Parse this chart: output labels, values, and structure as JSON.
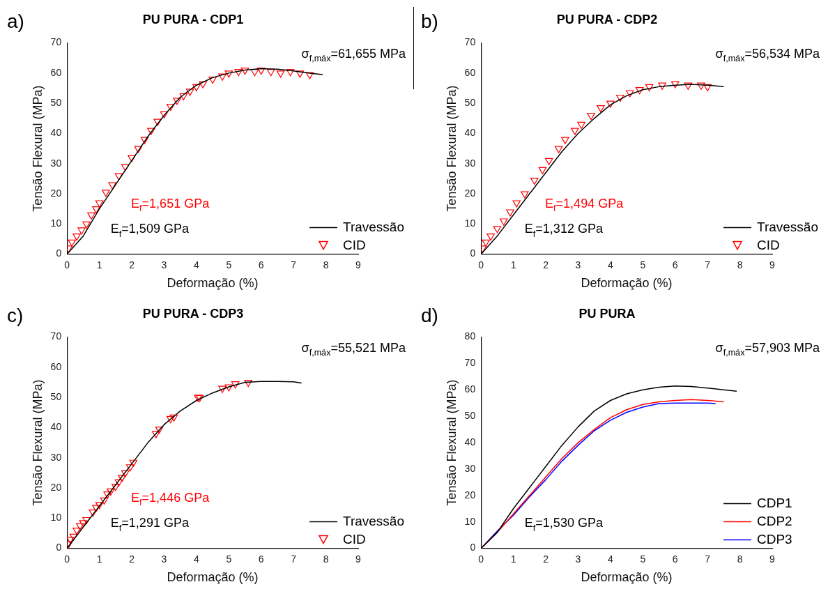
{
  "chart_data": [
    {
      "type": "line",
      "title": "PU PURA - CDP1",
      "xlabel": "Deformação (%)",
      "ylabel": "Tensão Flexural (MPa)",
      "xlim": [
        0,
        9
      ],
      "xticks": [
        0,
        1,
        2,
        3,
        4,
        5,
        6,
        7,
        8,
        9
      ],
      "ylim": [
        0,
        70
      ],
      "yticks": [
        0,
        10,
        20,
        30,
        40,
        50,
        60,
        70
      ],
      "legend": "bottom right",
      "annotations": [
        "a)",
        "σ$_{f,máx}$=61,655 MPa",
        "E$_{f}$=1,651 GPa",
        "E$_{f}$=1,509 GPa"
      ],
      "series": [
        {
          "name": "Travessão",
          "type": "line",
          "color": "#000000",
          "marker": "none",
          "x": [
            0,
            0.5,
            1,
            1.5,
            2,
            2.5,
            3,
            3.5,
            4,
            4.5,
            5,
            5.5,
            6,
            6.5,
            7,
            7.5,
            7.9
          ],
          "values": [
            0,
            6,
            15,
            23,
            31,
            39,
            46,
            52,
            56,
            58.5,
            60,
            61,
            61.5,
            61.3,
            60.7,
            60,
            59.5
          ]
        },
        {
          "name": "CID",
          "type": "scatter",
          "color": "#ff0000",
          "marker": "triangle",
          "x": [
            0.05,
            0.15,
            0.3,
            0.45,
            0.6,
            0.75,
            0.9,
            1.0,
            1.2,
            1.4,
            1.6,
            1.8,
            2.0,
            2.2,
            2.4,
            2.6,
            2.8,
            3.0,
            3.2,
            3.4,
            3.6,
            3.8,
            4.0,
            4.2,
            4.5,
            4.8,
            5.0,
            5.3,
            5.5,
            5.8,
            6.0,
            6.3,
            6.6,
            6.9,
            7.2,
            7.5
          ],
          "values": [
            2,
            4,
            6,
            8,
            10,
            13,
            15,
            17,
            20.5,
            23,
            26,
            29,
            32,
            35,
            38,
            41,
            44,
            46.5,
            49,
            51,
            52.5,
            54,
            55.5,
            56.5,
            58,
            59,
            60,
            60.5,
            61,
            60.5,
            61,
            60.5,
            60,
            60.5,
            60,
            59.5
          ]
        }
      ]
    },
    {
      "type": "line",
      "title": "PU PURA - CDP2",
      "xlabel": "Deformação (%)",
      "ylabel": "Tensão Flexural (MPa)",
      "xlim": [
        0,
        9
      ],
      "xticks": [
        0,
        1,
        2,
        3,
        4,
        5,
        6,
        7,
        8,
        9
      ],
      "ylim": [
        0,
        70
      ],
      "yticks": [
        0,
        10,
        20,
        30,
        40,
        50,
        60,
        70
      ],
      "legend": "bottom right",
      "annotations": [
        "b)",
        "σ$_{f,máx}$=56,534 MPa",
        "E$_{f}$=1,494 GPa",
        "E$_{f}$=1,312 GPa"
      ],
      "series": [
        {
          "name": "Travessão",
          "type": "line",
          "color": "#000000",
          "marker": "none",
          "x": [
            0,
            0.5,
            1,
            1.5,
            2,
            2.5,
            3,
            3.5,
            4,
            4.5,
            5,
            5.5,
            6,
            6.5,
            7,
            7.5
          ],
          "values": [
            0,
            6,
            13,
            20,
            27,
            34,
            40,
            45,
            49.5,
            52.5,
            54.5,
            55.5,
            56,
            56.3,
            56,
            55.5
          ]
        },
        {
          "name": "CID",
          "type": "scatter",
          "color": "#ff0000",
          "marker": "triangle",
          "x": [
            0.05,
            0.15,
            0.3,
            0.5,
            0.7,
            0.9,
            1.1,
            1.35,
            1.65,
            1.9,
            2.1,
            2.4,
            2.6,
            2.9,
            3.1,
            3.4,
            3.7,
            4.0,
            4.3,
            4.6,
            4.9,
            5.2,
            5.6,
            6.0,
            6.4,
            6.8,
            7.0
          ],
          "values": [
            2,
            4,
            6,
            8.5,
            11,
            14,
            17,
            20,
            24.5,
            28,
            31,
            35,
            38,
            41,
            43,
            46,
            48.5,
            50,
            52,
            53.5,
            54.5,
            55.5,
            56,
            56.5,
            56,
            56,
            55.5
          ]
        }
      ]
    },
    {
      "type": "line",
      "title": "PU PURA - CDP3",
      "xlabel": "Deformação (%)",
      "ylabel": "Tensão Flexural (MPa)",
      "xlim": [
        0,
        9
      ],
      "xticks": [
        0,
        1,
        2,
        3,
        4,
        5,
        6,
        7,
        8,
        9
      ],
      "ylim": [
        0,
        70
      ],
      "yticks": [
        0,
        10,
        20,
        30,
        40,
        50,
        60,
        70
      ],
      "legend": "bottom right",
      "annotations": [
        "c)",
        "σ$_{f,máx}$=55,521 MPa",
        "E$_{f}$=1,446 GPa",
        "E$_{f}$=1,291 GPa"
      ],
      "series": [
        {
          "name": "Travessão",
          "type": "line",
          "color": "#000000",
          "marker": "none",
          "x": [
            0,
            0.5,
            1,
            1.5,
            2,
            2.5,
            3,
            3.5,
            4,
            4.5,
            5,
            5.5,
            6,
            6.5,
            7,
            7.25
          ],
          "values": [
            0,
            7,
            14,
            21,
            28,
            35,
            41,
            45.5,
            49,
            51.5,
            53.5,
            55,
            55.3,
            55.3,
            55.2,
            54.8
          ]
        },
        {
          "name": "CID",
          "type": "scatter",
          "color": "#ff0000",
          "marker": "triangle",
          "x": [
            0.05,
            0.1,
            0.2,
            0.3,
            0.4,
            0.5,
            0.6,
            0.8,
            0.9,
            1.0,
            1.15,
            1.25,
            1.35,
            1.5,
            1.6,
            1.7,
            1.8,
            1.95,
            2.05,
            2.75,
            2.85,
            3.2,
            3.3,
            4.05,
            4.1,
            4.8,
            5.0,
            5.2,
            5.6
          ],
          "values": [
            1.5,
            3,
            4,
            6,
            7.5,
            8.5,
            9.5,
            12,
            13.5,
            14.5,
            16,
            18,
            19,
            20.5,
            22,
            23.5,
            25,
            27,
            28.5,
            38,
            39.5,
            43,
            43.5,
            50,
            50,
            53,
            53.5,
            54.5,
            55
          ]
        }
      ]
    },
    {
      "type": "line",
      "title": "PU PURA",
      "xlabel": "Deformação (%)",
      "ylabel": "Tensão Flexural (MPa)",
      "xlim": [
        0,
        9
      ],
      "xticks": [
        0,
        1,
        2,
        3,
        4,
        5,
        6,
        7,
        8,
        9
      ],
      "ylim": [
        0,
        80
      ],
      "yticks": [
        0,
        10,
        20,
        30,
        40,
        50,
        60,
        70,
        80
      ],
      "legend": "bottom right",
      "annotations": [
        "d)",
        "σ$_{f,máx}$=57,903 MPa",
        "E$_{f}$=1,530 GPa"
      ],
      "series": [
        {
          "name": "CDP1",
          "color": "#000000",
          "x": [
            0,
            0.5,
            1,
            1.5,
            2,
            2.5,
            3,
            3.5,
            4,
            4.5,
            5,
            5.5,
            6,
            6.5,
            7,
            7.5,
            7.9
          ],
          "values": [
            0,
            6,
            15,
            23,
            31,
            39,
            46,
            52,
            56,
            58.5,
            60,
            61,
            61.5,
            61.3,
            60.7,
            60,
            59.5
          ]
        },
        {
          "name": "CDP2",
          "color": "#ff0000",
          "x": [
            0,
            0.5,
            1,
            1.5,
            2,
            2.5,
            3,
            3.5,
            4,
            4.5,
            5,
            5.5,
            6,
            6.5,
            7,
            7.5
          ],
          "values": [
            0,
            6,
            13,
            20,
            27,
            34,
            40,
            45,
            49.5,
            52.5,
            54.5,
            55.5,
            56,
            56.3,
            56,
            55.5
          ]
        },
        {
          "name": "CDP3",
          "color": "#0000ff",
          "x": [
            0,
            0.5,
            1,
            1.5,
            2,
            2.5,
            3,
            3.5,
            4,
            4.5,
            5,
            5.5,
            6,
            6.5,
            7,
            7.25
          ],
          "values": [
            0,
            6.5,
            12.5,
            19.5,
            26,
            33,
            39,
            44.5,
            48.5,
            51.5,
            53.5,
            54.8,
            55,
            55,
            55,
            54.8
          ]
        }
      ]
    }
  ]
}
